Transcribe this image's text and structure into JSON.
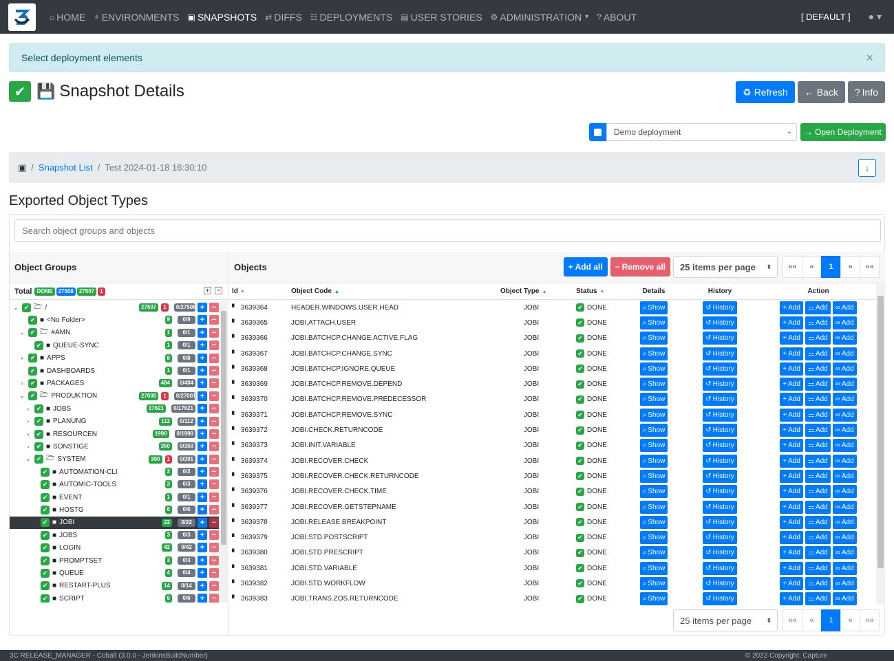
{
  "nav": {
    "items": [
      {
        "label": "HOME",
        "icon": "home-icon",
        "glyph": "⌂"
      },
      {
        "label": "ENVIRONMENTS",
        "icon": "plug-icon",
        "glyph": "⚡"
      },
      {
        "label": "SNAPSHOTS",
        "icon": "save-icon",
        "glyph": "▣"
      },
      {
        "label": "DIFFS",
        "icon": "shuffle-icon",
        "glyph": "⇄"
      },
      {
        "label": "DEPLOYMENTS",
        "icon": "sitemap-icon",
        "glyph": "☷"
      },
      {
        "label": "USER STORIES",
        "icon": "book-icon",
        "glyph": "▤"
      },
      {
        "label": "ADMINISTRATION",
        "icon": "gear-icon",
        "glyph": "⚙"
      },
      {
        "label": "ABOUT",
        "icon": "question-icon",
        "glyph": "?"
      }
    ],
    "active": "SNAPSHOTS",
    "env": "[ DEFAULT ]"
  },
  "alert": {
    "text": "Select deployment elements",
    "close": "×"
  },
  "page": {
    "title": "Snapshot Details"
  },
  "buttons": {
    "refresh": "Refresh",
    "back": "Back",
    "info": "Info"
  },
  "deployment": {
    "selected": "Demo deployment",
    "open": "Open Deployment"
  },
  "breadcrumb": {
    "list": "Snapshot List",
    "current": "Test 2024-01-18 16:30:10"
  },
  "section": {
    "title": "Exported Object Types"
  },
  "search": {
    "placeholder": "Search object groups and objects"
  },
  "groups": {
    "title": "Object Groups",
    "total_label": "Total",
    "total_badges": [
      "DONE",
      "27508",
      "27507",
      "1"
    ],
    "rows": [
      {
        "name": "/",
        "level": 0,
        "toggle": "⌄",
        "open": true,
        "count": "27507",
        "err": "1",
        "ratio": "0/27508"
      },
      {
        "name": "<No Folder>",
        "level": 1,
        "toggle": "",
        "open": false,
        "count": "9",
        "err": "",
        "ratio": "0/9"
      },
      {
        "name": "#AMN",
        "level": 1,
        "toggle": "⌄",
        "open": true,
        "count": "1",
        "err": "",
        "ratio": "0/1"
      },
      {
        "name": "QUEUE-SYNC",
        "level": 2,
        "toggle": "",
        "open": false,
        "count": "1",
        "err": "",
        "ratio": "0/1"
      },
      {
        "name": "APPS",
        "level": 1,
        "toggle": "›",
        "open": false,
        "count": "8",
        "err": "",
        "ratio": "0/8"
      },
      {
        "name": "DASHBOARDS",
        "level": 1,
        "toggle": "",
        "open": false,
        "count": "1",
        "err": "",
        "ratio": "0/1"
      },
      {
        "name": "PACKAGES",
        "level": 1,
        "toggle": "›",
        "open": false,
        "count": "484",
        "err": "",
        "ratio": "0/484"
      },
      {
        "name": "PRODUKTION",
        "level": 1,
        "toggle": "⌄",
        "open": true,
        "count": "27000",
        "err": "1",
        "ratio": "0/27001"
      },
      {
        "name": "JOBS",
        "level": 2,
        "toggle": "›",
        "open": false,
        "count": "17621",
        "err": "",
        "ratio": "0/17621"
      },
      {
        "name": "PLANUNG",
        "level": 2,
        "toggle": "›",
        "open": false,
        "count": "112",
        "err": "",
        "ratio": "0/112"
      },
      {
        "name": "RESOURCEN",
        "level": 2,
        "toggle": "›",
        "open": false,
        "count": "1990",
        "err": "",
        "ratio": "0/1990"
      },
      {
        "name": "SONSTIGE",
        "level": 2,
        "toggle": "›",
        "open": false,
        "count": "350",
        "err": "",
        "ratio": "0/350"
      },
      {
        "name": "SYSTEM",
        "level": 2,
        "toggle": "⌄",
        "open": true,
        "count": "390",
        "err": "1",
        "ratio": "0/391"
      },
      {
        "name": "AUTOMATION-CLI",
        "level": 3,
        "toggle": "",
        "open": false,
        "count": "2",
        "err": "",
        "ratio": "0/2"
      },
      {
        "name": "AUTOMIC-TOOLS",
        "level": 3,
        "toggle": "",
        "open": false,
        "count": "3",
        "err": "",
        "ratio": "0/3"
      },
      {
        "name": "EVENT",
        "level": 3,
        "toggle": "",
        "open": false,
        "count": "1",
        "err": "",
        "ratio": "0/1"
      },
      {
        "name": "HOSTG",
        "level": 3,
        "toggle": "",
        "open": false,
        "count": "6",
        "err": "",
        "ratio": "0/6"
      },
      {
        "name": "JOBI",
        "level": 3,
        "toggle": "",
        "open": false,
        "count": "22",
        "err": "",
        "ratio": "0/22",
        "selected": true
      },
      {
        "name": "JOBS",
        "level": 3,
        "toggle": "",
        "open": false,
        "count": "3",
        "err": "",
        "ratio": "0/3"
      },
      {
        "name": "LOGIN",
        "level": 3,
        "toggle": "",
        "open": false,
        "count": "42",
        "err": "",
        "ratio": "0/42"
      },
      {
        "name": "PROMPTSET",
        "level": 3,
        "toggle": "",
        "open": false,
        "count": "3",
        "err": "",
        "ratio": "0/3"
      },
      {
        "name": "QUEUE",
        "level": 3,
        "toggle": "",
        "open": false,
        "count": "4",
        "err": "",
        "ratio": "0/4"
      },
      {
        "name": "RESTART-PLUS",
        "level": 3,
        "toggle": "",
        "open": false,
        "count": "14",
        "err": "",
        "ratio": "0/14"
      },
      {
        "name": "SCRIPT",
        "level": 3,
        "toggle": "",
        "open": false,
        "count": "6",
        "err": "",
        "ratio": "0/6"
      }
    ]
  },
  "objects": {
    "title": "Objects",
    "add_all": "Add all",
    "remove_all": "Remove all",
    "per_page": "25 items per page",
    "pager": [
      "««",
      "«",
      "1",
      "»",
      "»»"
    ],
    "columns": {
      "id": "Id",
      "code": "Object Code",
      "type": "Object Type",
      "status": "Status",
      "details": "Details",
      "history": "History",
      "action": "Action"
    },
    "show_label": "Show",
    "history_label": "History",
    "add_label": "Add",
    "rows": [
      {
        "id": "3639364",
        "code": "HEADER.WINDOWS.USER.HEAD",
        "type": "JOBI",
        "status": "DONE"
      },
      {
        "id": "3639365",
        "code": "JOBI.ATTACH.USER",
        "type": "JOBI",
        "status": "DONE"
      },
      {
        "id": "3639366",
        "code": "JOBI.BATCHCP.CHANGE.ACTIVE.FLAG",
        "type": "JOBI",
        "status": "DONE"
      },
      {
        "id": "3639367",
        "code": "JOBI.BATCHCP.CHANGE.SYNC",
        "type": "JOBI",
        "status": "DONE"
      },
      {
        "id": "3639368",
        "code": "JOBI.BATCHCP.IGNORE.QUEUE",
        "type": "JOBI",
        "status": "DONE"
      },
      {
        "id": "3639369",
        "code": "JOBI.BATCHCP.REMOVE.DEPEND",
        "type": "JOBI",
        "status": "DONE"
      },
      {
        "id": "3639370",
        "code": "JOBI.BATCHCP.REMOVE.PREDECESSOR",
        "type": "JOBI",
        "status": "DONE"
      },
      {
        "id": "3639371",
        "code": "JOBI.BATCHCP.REMOVE.SYNC",
        "type": "JOBI",
        "status": "DONE"
      },
      {
        "id": "3639372",
        "code": "JOBI.CHECK.RETURNCODE",
        "type": "JOBI",
        "status": "DONE"
      },
      {
        "id": "3639373",
        "code": "JOBI.INIT.VARIABLE",
        "type": "JOBI",
        "status": "DONE"
      },
      {
        "id": "3639374",
        "code": "JOBI.RECOVER.CHECK",
        "type": "JOBI",
        "status": "DONE"
      },
      {
        "id": "3639375",
        "code": "JOBI.RECOVER.CHECK.RETURNCODE",
        "type": "JOBI",
        "status": "DONE"
      },
      {
        "id": "3639376",
        "code": "JOBI.RECOVER.CHECK.TIME",
        "type": "JOBI",
        "status": "DONE"
      },
      {
        "id": "3639377",
        "code": "JOBI.RECOVER.GETSTEPNAME",
        "type": "JOBI",
        "status": "DONE"
      },
      {
        "id": "3639378",
        "code": "JOBI.RELEASE.BREAKPOINT",
        "type": "JOBI",
        "status": "DONE"
      },
      {
        "id": "3639379",
        "code": "JOBI.STD.POSTSCRIPT",
        "type": "JOBI",
        "status": "DONE"
      },
      {
        "id": "3639380",
        "code": "JOBI.STD.PRESCRIPT",
        "type": "JOBI",
        "status": "DONE"
      },
      {
        "id": "3639381",
        "code": "JOBI.STD.VARIABLE",
        "type": "JOBI",
        "status": "DONE"
      },
      {
        "id": "3639382",
        "code": "JOBI.STD.WORKFLOW",
        "type": "JOBI",
        "status": "DONE"
      },
      {
        "id": "3639383",
        "code": "JOBI.TRANS.ZOS.RETURNCODE",
        "type": "JOBI",
        "status": "DONE"
      }
    ]
  },
  "footer": {
    "left": "3C RELEASE_MANAGER - Cobalt (3.0.0 - JenkinsBuildNumber)",
    "right": "© 2022 Copyright: Capture"
  },
  "colors": {
    "primary": "#007bff",
    "success": "#28a745",
    "danger": "#dc3545",
    "navbar": "#343a40",
    "info_bg": "#d1ecf1"
  }
}
